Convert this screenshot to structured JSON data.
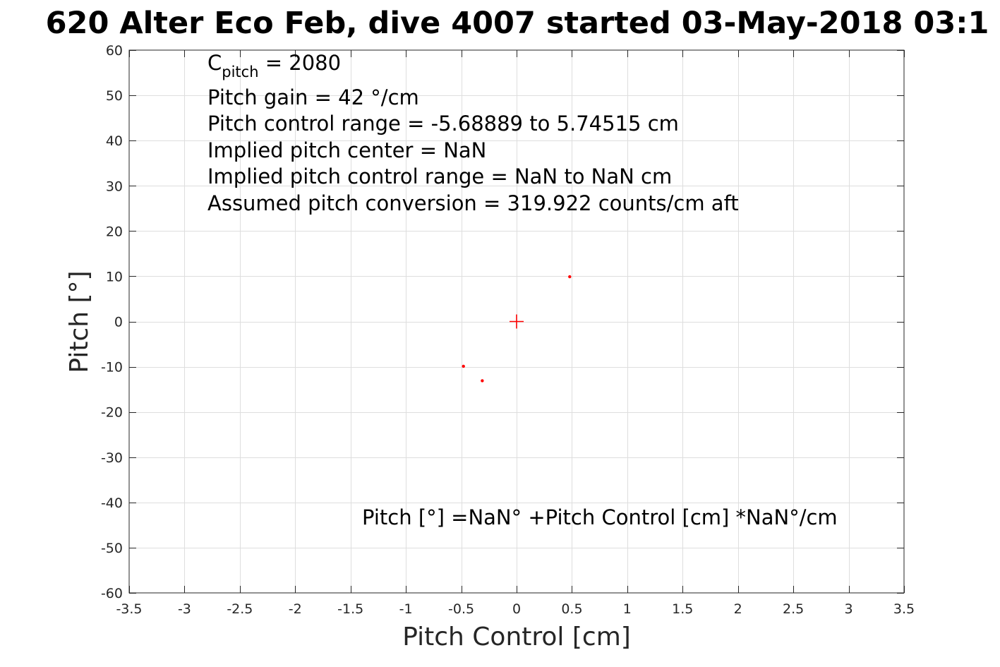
{
  "chart_data": {
    "type": "scatter",
    "title": "620 Alter Eco Feb, dive 4007 started 03-May-2018 03:1",
    "xlabel": "Pitch Control [cm]",
    "ylabel": "Pitch [°]",
    "xlim": [
      -3.5,
      3.5
    ],
    "ylim": [
      -60,
      60
    ],
    "x_ticks": [
      -3.5,
      -3,
      -2.5,
      -2,
      -1.5,
      -1,
      -0.5,
      0,
      0.5,
      1,
      1.5,
      2,
      2.5,
      3,
      3.5
    ],
    "y_ticks": [
      -60,
      -50,
      -40,
      -30,
      -20,
      -10,
      0,
      10,
      20,
      30,
      40,
      50,
      60
    ],
    "grid": true,
    "series": [
      {
        "marker": "dot",
        "color": "#ff0000",
        "points": [
          {
            "x": 0.48,
            "y": 9.9
          },
          {
            "x": -0.48,
            "y": -9.9
          },
          {
            "x": -0.31,
            "y": -13.1
          }
        ]
      },
      {
        "marker": "plus",
        "color": "#ff0000",
        "points": [
          {
            "x": 0,
            "y": 0
          }
        ]
      }
    ],
    "annotations": {
      "c_pitch": {
        "main": "C",
        "sub": "pitch",
        "rest": " = 2080"
      },
      "lines": [
        "Pitch gain = 42 °/cm",
        "Pitch control range = -5.68889 to 5.74515 cm",
        "Implied pitch center = NaN",
        "Implied pitch control range = NaN to NaN cm",
        "Assumed pitch conversion = 319.922 counts/cm aft"
      ],
      "fit_equation": "Pitch [°] =NaN° +Pitch Control [cm] *NaN°/cm"
    }
  }
}
